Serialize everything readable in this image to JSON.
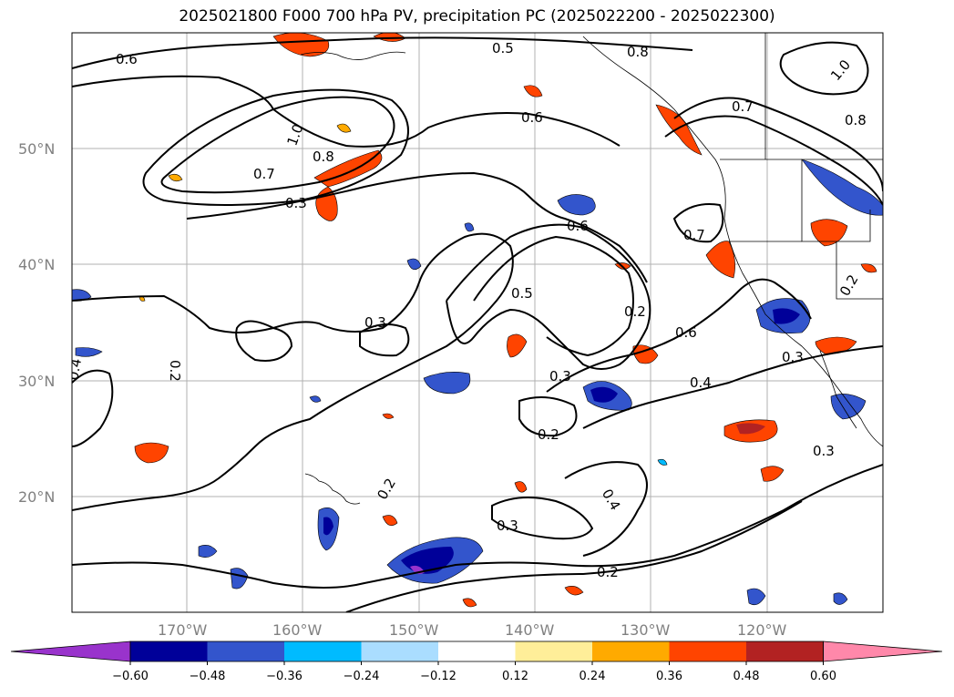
{
  "title": "2025021800 F000 700 hPa PV, precipitation PC (2025022200 - 2025022300)",
  "lat_ticks": [
    "50°N",
    "40°N",
    "30°N",
    "20°N"
  ],
  "lon_ticks": [
    "170°W",
    "160°W",
    "150°W",
    "140°W",
    "130°W",
    "120°W"
  ],
  "colorbar": {
    "ticks": [
      "−0.60",
      "−0.48",
      "−0.36",
      "−0.24",
      "−0.12",
      "0.12",
      "0.24",
      "0.36",
      "0.48",
      "0.60"
    ],
    "colors": [
      "#9933cc",
      "#000099",
      "#3355cc",
      "#00bbff",
      "#aaddff",
      "#ffffff",
      "#ffee99",
      "#ffaa00",
      "#ff4400",
      "#b22222",
      "#ff88aa"
    ]
  },
  "contour_labels": [
    "0.6",
    "0.5",
    "0.8",
    "1.0",
    "0.7",
    "0.6",
    "1.0",
    "0.8",
    "0.7",
    "0.3",
    "0.6",
    "0.7",
    "0.5",
    "0.2",
    "0.3",
    "0.6",
    "0.4",
    "0.2",
    "0.3",
    "0.2",
    "0.3",
    "0.4",
    "0.2",
    "0.2",
    "0.3",
    "0.4",
    "0.8",
    "0.2",
    "0.3"
  ]
}
